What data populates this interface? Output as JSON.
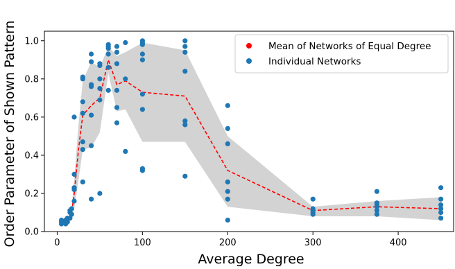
{
  "chart_data": {
    "type": "scatter",
    "xlabel": "Average Degree",
    "ylabel": "Order Parameter of Shown Pattern",
    "xlim": [
      -15,
      465
    ],
    "ylim": [
      0.0,
      1.05
    ],
    "xticks": [
      0,
      100,
      200,
      300,
      400
    ],
    "yticks": [
      0.0,
      0.2,
      0.4,
      0.6,
      0.8,
      1.0
    ],
    "legend_position": "top-right",
    "colors": {
      "mean": "#ff0000",
      "points": "#1f77b4",
      "band": "#d3d3d3"
    },
    "series": [
      {
        "name": "Mean of Networks of Equal Degree",
        "kind": "line",
        "points": [
          [
            5,
            0.05
          ],
          [
            10,
            0.05
          ],
          [
            12,
            0.06
          ],
          [
            15,
            0.08
          ],
          [
            17,
            0.1
          ],
          [
            20,
            0.2
          ],
          [
            25,
            0.43
          ],
          [
            30,
            0.61
          ],
          [
            40,
            0.66
          ],
          [
            50,
            0.7
          ],
          [
            60,
            0.9
          ],
          [
            70,
            0.77
          ],
          [
            80,
            0.79
          ],
          [
            100,
            0.73
          ],
          [
            150,
            0.71
          ],
          [
            200,
            0.32
          ],
          [
            300,
            0.11
          ],
          [
            375,
            0.13
          ],
          [
            450,
            0.12
          ]
        ]
      },
      {
        "name": "Individual Networks",
        "kind": "scatter",
        "points": [
          [
            5,
            0.04
          ],
          [
            5,
            0.05
          ],
          [
            5,
            0.06
          ],
          [
            10,
            0.04
          ],
          [
            10,
            0.05
          ],
          [
            10,
            0.06
          ],
          [
            12,
            0.05
          ],
          [
            12,
            0.07
          ],
          [
            15,
            0.07
          ],
          [
            15,
            0.1
          ],
          [
            15,
            0.11
          ],
          [
            17,
            0.09
          ],
          [
            17,
            0.12
          ],
          [
            20,
            0.16
          ],
          [
            20,
            0.23
          ],
          [
            20,
            0.3
          ],
          [
            20,
            0.6
          ],
          [
            20,
            0.22
          ],
          [
            30,
            0.26
          ],
          [
            30,
            0.43
          ],
          [
            30,
            0.47
          ],
          [
            30,
            0.62
          ],
          [
            30,
            0.68
          ],
          [
            30,
            0.8
          ],
          [
            30,
            0.81
          ],
          [
            40,
            0.17
          ],
          [
            40,
            0.45
          ],
          [
            40,
            0.61
          ],
          [
            40,
            0.76
          ],
          [
            40,
            0.77
          ],
          [
            40,
            0.89
          ],
          [
            40,
            0.93
          ],
          [
            50,
            0.2
          ],
          [
            50,
            0.69
          ],
          [
            50,
            0.75
          ],
          [
            50,
            0.8
          ],
          [
            50,
            0.87
          ],
          [
            50,
            0.88
          ],
          [
            60,
            0.74
          ],
          [
            60,
            0.86
          ],
          [
            60,
            0.93
          ],
          [
            60,
            0.96
          ],
          [
            60,
            0.97
          ],
          [
            60,
            0.98
          ],
          [
            70,
            0.57
          ],
          [
            70,
            0.65
          ],
          [
            70,
            0.74
          ],
          [
            70,
            0.88
          ],
          [
            70,
            0.94
          ],
          [
            70,
            0.97
          ],
          [
            80,
            0.42
          ],
          [
            80,
            0.8
          ],
          [
            80,
            0.99
          ],
          [
            100,
            0.32
          ],
          [
            100,
            0.33
          ],
          [
            100,
            0.64
          ],
          [
            100,
            0.72
          ],
          [
            100,
            0.9
          ],
          [
            100,
            0.93
          ],
          [
            100,
            0.98
          ],
          [
            100,
            1.0
          ],
          [
            100,
            0.99
          ],
          [
            150,
            0.29
          ],
          [
            150,
            0.56
          ],
          [
            150,
            0.58
          ],
          [
            150,
            0.84
          ],
          [
            150,
            0.94
          ],
          [
            150,
            0.97
          ],
          [
            150,
            1.0
          ],
          [
            200,
            0.06
          ],
          [
            200,
            0.17
          ],
          [
            200,
            0.21
          ],
          [
            200,
            0.26
          ],
          [
            200,
            0.46
          ],
          [
            200,
            0.54
          ],
          [
            200,
            0.66
          ],
          [
            300,
            0.09
          ],
          [
            300,
            0.1
          ],
          [
            300,
            0.11
          ],
          [
            300,
            0.12
          ],
          [
            300,
            0.17
          ],
          [
            375,
            0.09
          ],
          [
            375,
            0.11
          ],
          [
            375,
            0.13
          ],
          [
            375,
            0.14
          ],
          [
            375,
            0.15
          ],
          [
            375,
            0.21
          ],
          [
            450,
            0.07
          ],
          [
            450,
            0.1
          ],
          [
            450,
            0.12
          ],
          [
            450,
            0.14
          ],
          [
            450,
            0.17
          ],
          [
            450,
            0.23
          ]
        ]
      }
    ],
    "band": {
      "x": [
        5,
        10,
        12,
        15,
        17,
        20,
        25,
        30,
        40,
        50,
        60,
        70,
        80,
        100,
        150,
        200,
        300,
        375,
        450
      ],
      "lower": [
        0.04,
        0.04,
        0.05,
        0.06,
        0.08,
        0.12,
        0.27,
        0.43,
        0.44,
        0.52,
        0.83,
        0.63,
        0.64,
        0.47,
        0.47,
        0.13,
        0.08,
        0.08,
        0.06
      ],
      "upper": [
        0.06,
        0.06,
        0.07,
        0.1,
        0.12,
        0.28,
        0.56,
        0.79,
        0.89,
        0.86,
        0.97,
        0.92,
        0.94,
        0.99,
        0.95,
        0.5,
        0.13,
        0.16,
        0.18
      ]
    }
  }
}
